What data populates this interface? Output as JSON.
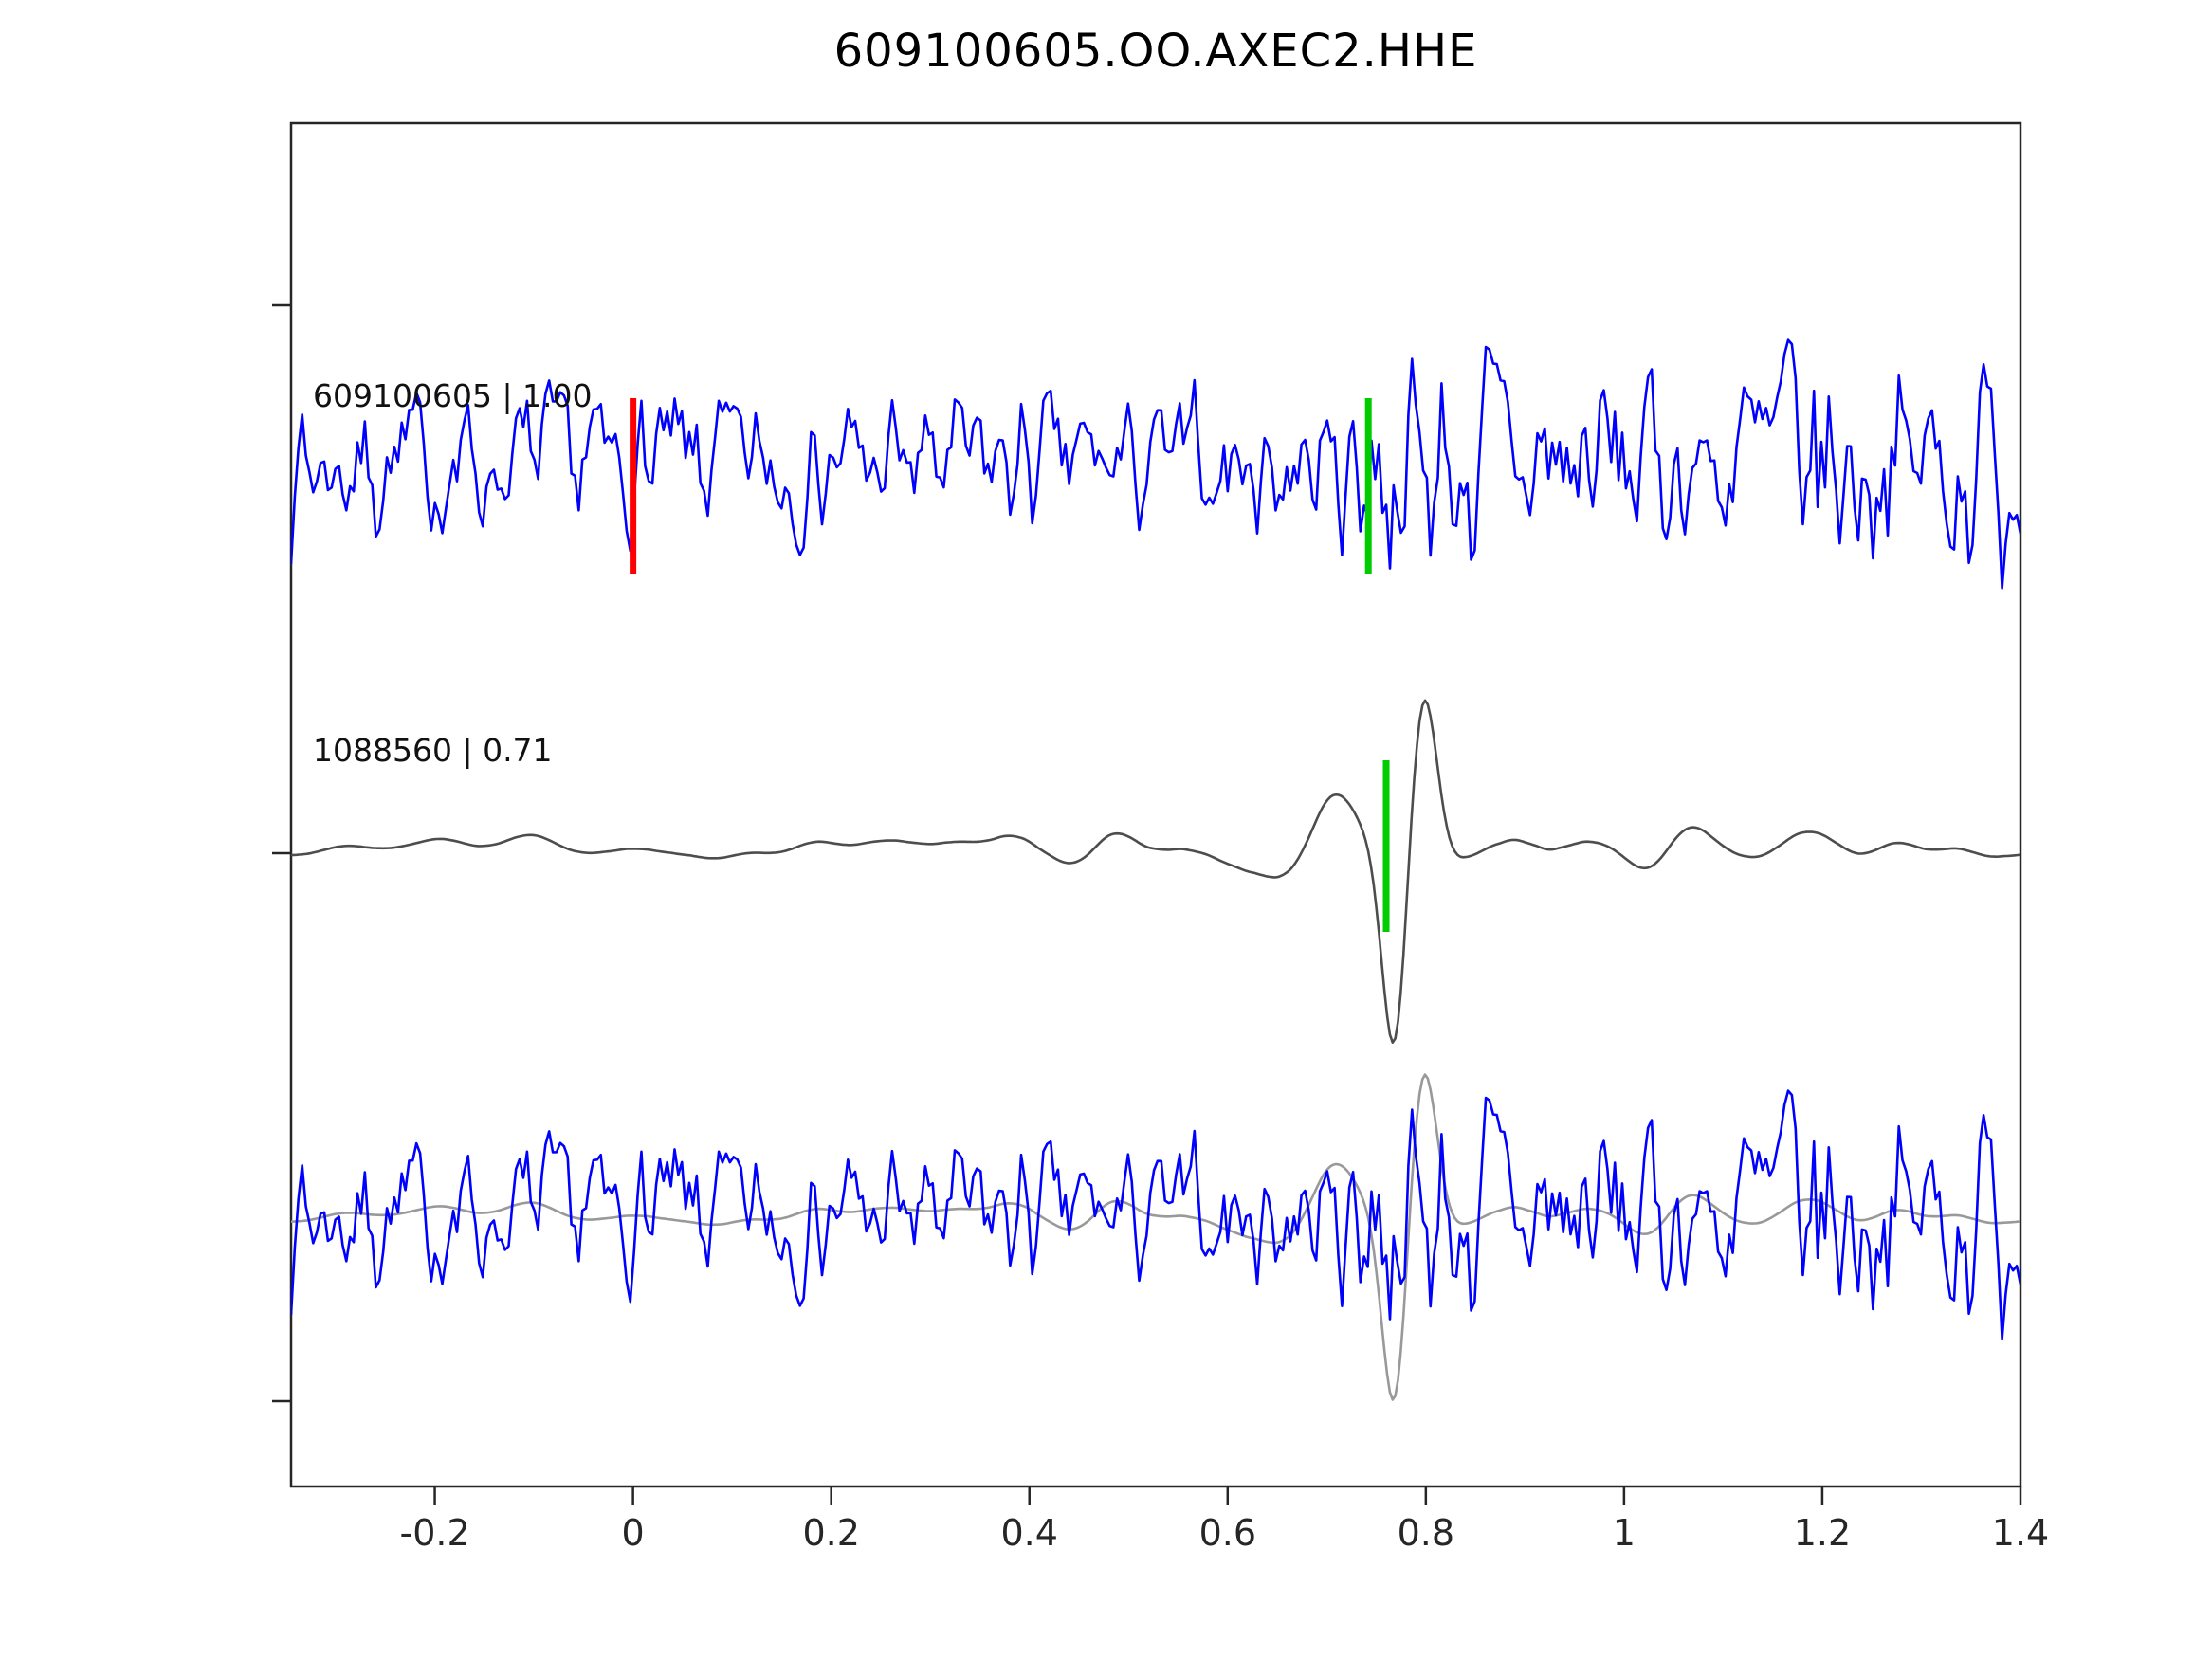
{
  "chart_data": {
    "type": "line",
    "title": "609100605.OO.AXEC2.HHE",
    "xlabel": "",
    "ylabel": "",
    "xlim": [
      -0.345,
      1.4
    ],
    "xticks": [
      -0.2,
      0,
      0.2,
      0.4,
      0.6,
      0.8,
      1,
      1.2,
      1.4
    ],
    "grid": false,
    "legend_position": "none",
    "axis_color": "#262626",
    "background": "#ffffff",
    "trace_labels": [
      {
        "text": "609100605 | 1.00"
      },
      {
        "text": "1088560 | 0.71"
      }
    ],
    "traces": [
      {
        "id": "candidate-waveform",
        "row": "middle",
        "color": "#4d4d4d",
        "stroke_width": 2.6,
        "seed": 3,
        "points": 640,
        "smooth_win": 6,
        "smooth_passes": 3,
        "base_amp": 26,
        "scale": 1,
        "envelope": [
          [
            -0.345,
            0.5
          ],
          [
            0.2,
            0.7
          ],
          [
            0.5,
            1.0
          ],
          [
            0.65,
            1.3
          ],
          [
            0.75,
            0.6
          ],
          [
            0.9,
            1.9
          ],
          [
            1.1,
            1.3
          ],
          [
            1.4,
            1.0
          ]
        ],
        "gaussians": [
          {
            "c": 0.705,
            "s": 0.022,
            "a": 55
          },
          {
            "c": 0.768,
            "s": 0.012,
            "a": -215
          },
          {
            "c": 0.798,
            "s": 0.013,
            "a": 168
          }
        ]
      },
      {
        "id": "template-waveform",
        "row": "top",
        "color": "#0000ff",
        "stroke_width": 2.6,
        "seed": 7,
        "points": 470,
        "smooth_win": 1,
        "smooth_passes": 1,
        "base_amp": 105,
        "scale": 1,
        "envelope": [
          [
            -0.345,
            1.0
          ],
          [
            0.55,
            0.95
          ],
          [
            0.68,
            1.05
          ],
          [
            0.78,
            1.75
          ],
          [
            0.98,
            1.55
          ],
          [
            1.08,
            1.15
          ],
          [
            1.17,
            1.85
          ],
          [
            1.26,
            1.25
          ],
          [
            1.4,
            1.65
          ]
        ],
        "gaussians": []
      },
      {
        "id": "overlay-candidate-waveform",
        "row": "bottom",
        "color": "#999999",
        "stroke_width": 2.6,
        "seed": 3,
        "points": 640,
        "smooth_win": 6,
        "smooth_passes": 3,
        "base_amp": 26,
        "scale": 0.95,
        "envelope": [
          [
            -0.345,
            0.5
          ],
          [
            0.2,
            0.7
          ],
          [
            0.5,
            1.0
          ],
          [
            0.65,
            1.3
          ],
          [
            0.75,
            0.6
          ],
          [
            0.9,
            1.9
          ],
          [
            1.1,
            1.3
          ],
          [
            1.4,
            1.0
          ]
        ],
        "gaussians": [
          {
            "c": 0.705,
            "s": 0.022,
            "a": 55
          },
          {
            "c": 0.768,
            "s": 0.012,
            "a": -215
          },
          {
            "c": 0.798,
            "s": 0.013,
            "a": 168
          }
        ]
      },
      {
        "id": "overlay-template-waveform",
        "row": "bottom",
        "color": "#0000ff",
        "stroke_width": 2.6,
        "seed": 7,
        "points": 470,
        "smooth_win": 1,
        "smooth_passes": 1,
        "base_amp": 105,
        "scale": 1,
        "envelope": [
          [
            -0.345,
            1.0
          ],
          [
            0.55,
            0.95
          ],
          [
            0.68,
            1.05
          ],
          [
            0.78,
            1.75
          ],
          [
            0.98,
            1.55
          ],
          [
            1.08,
            1.15
          ],
          [
            1.17,
            1.85
          ],
          [
            1.26,
            1.25
          ],
          [
            1.4,
            1.65
          ]
        ],
        "gaussians": []
      }
    ],
    "markers": [
      {
        "x": 0.0,
        "row": "top",
        "color": "#ff0000",
        "dy_top": -70,
        "dy_bottom": 115
      },
      {
        "x": 0.742,
        "row": "top",
        "color": "#00cc00",
        "dy_top": -70,
        "dy_bottom": 115
      },
      {
        "x": 0.76,
        "row": "middle",
        "color": "#00cc00",
        "dy_top": -93,
        "dy_bottom": 88
      }
    ]
  }
}
